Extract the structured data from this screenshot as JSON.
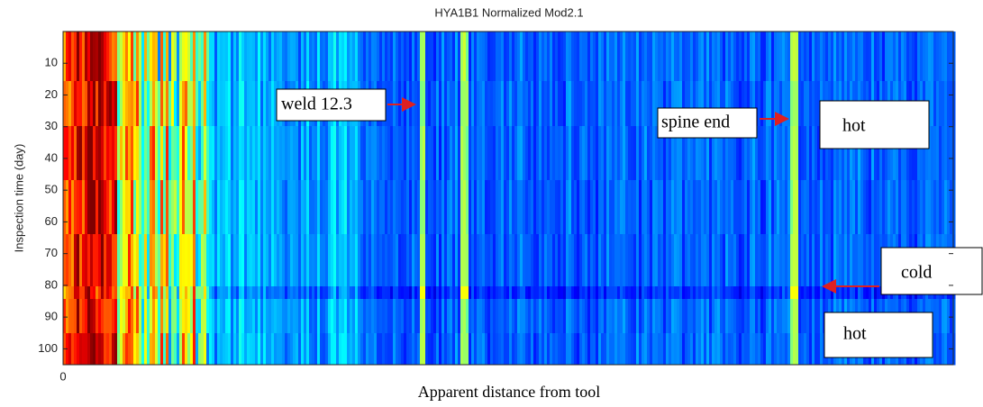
{
  "chart_data": {
    "type": "heatmap",
    "title": "HYA1B1 Normalized  Mod2.1",
    "x_label": "Apparent distance from tool",
    "y_label": "Inspection time (day)",
    "ylim": [
      0,
      105
    ],
    "yticks": [
      10,
      20,
      30,
      40,
      50,
      60,
      70,
      80,
      90,
      100
    ],
    "y_reversed": true,
    "xticks": [
      0
    ],
    "colormap": "jet",
    "annotations": [
      "weld 12.3",
      "spine end",
      "hot",
      "cold",
      "hot"
    ]
  }
}
